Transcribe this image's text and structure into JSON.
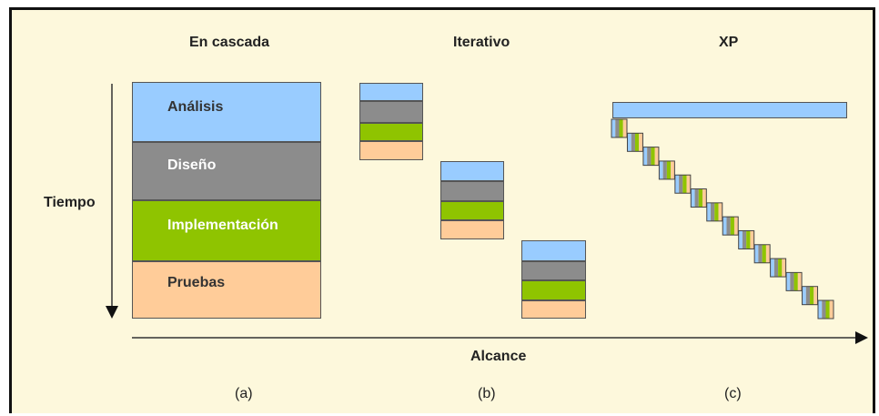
{
  "headers": {
    "cascade": "En cascada",
    "iterative": "Iterativo",
    "xp": "XP"
  },
  "axes": {
    "time": "Tiempo",
    "scope": "Alcance"
  },
  "phases": [
    {
      "label": "Análisis",
      "color": "#99ccff"
    },
    {
      "label": "Diseño",
      "color": "#8c8c8c"
    },
    {
      "label": "Implementación",
      "color": "#8fc400"
    },
    {
      "label": "Pruebas",
      "color": "#ffcc99"
    }
  ],
  "panels": [
    "(a)",
    "(b)",
    "(c)"
  ]
}
